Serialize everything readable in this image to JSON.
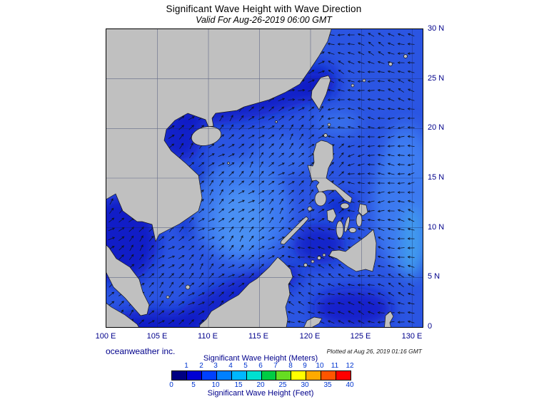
{
  "header": {
    "title": "Significant Wave Height with Wave Direction",
    "subtitle": "Valid For Aug-26-2019 06:00 GMT"
  },
  "footer": {
    "credit": "oceanweather inc.",
    "plotted_at": "Plotted at Aug 26, 2019 01:16 GMT"
  },
  "axes": {
    "lat": [
      "30 N",
      "25 N",
      "20 N",
      "15 N",
      "10 N",
      "5 N",
      "0"
    ],
    "lon": [
      "100 E",
      "105 E",
      "110 E",
      "115 E",
      "120 E",
      "125 E",
      "130 E"
    ]
  },
  "colorbar": {
    "title_meters": "Significant Wave Height (Meters)",
    "title_feet": "Significant Wave Height (Feet)",
    "meters_ticks": [
      "1",
      "2",
      "3",
      "4",
      "5",
      "6",
      "7",
      "8",
      "9",
      "10",
      "11",
      "12"
    ],
    "feet_ticks": [
      "0",
      "5",
      "10",
      "15",
      "20",
      "25",
      "30",
      "35",
      "40"
    ],
    "colors": [
      "#000082",
      "#0000d4",
      "#0040ff",
      "#0080ff",
      "#00b8ff",
      "#00e0d0",
      "#00cc44",
      "#66dd22",
      "#ffff00",
      "#ffaa00",
      "#ff5500",
      "#ff0000"
    ]
  },
  "map_colors": {
    "ocean": "#2b55e2",
    "land": "#c0c0c0",
    "arrow": "#0d1322",
    "grid": "#16245a"
  }
}
